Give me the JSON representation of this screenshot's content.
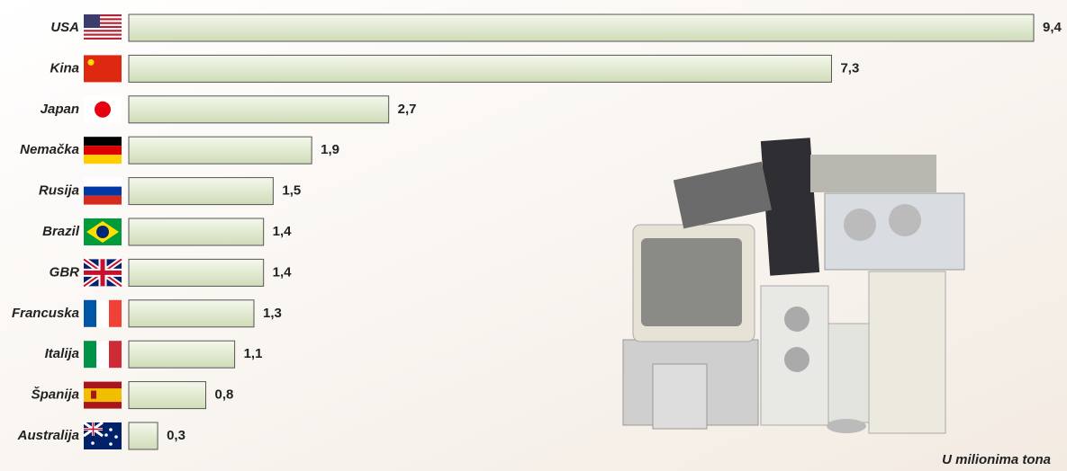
{
  "chart_data": {
    "type": "bar",
    "orientation": "horizontal",
    "categories": [
      "USA",
      "Kina",
      "Japan",
      "Nemačka",
      "Rusija",
      "Brazil",
      "GBR",
      "Francuska",
      "Italija",
      "Španija",
      "Australija"
    ],
    "values": [
      9.4,
      7.3,
      2.7,
      1.9,
      1.5,
      1.4,
      1.4,
      1.3,
      1.1,
      0.8,
      0.3
    ],
    "value_labels": [
      "9,4",
      "7,3",
      "2,7",
      "1,9",
      "1,5",
      "1,4",
      "1,4",
      "1,3",
      "1,1",
      "0,8",
      "0,3"
    ],
    "color": "#dde8cc",
    "note": "U milionima tona"
  }
}
